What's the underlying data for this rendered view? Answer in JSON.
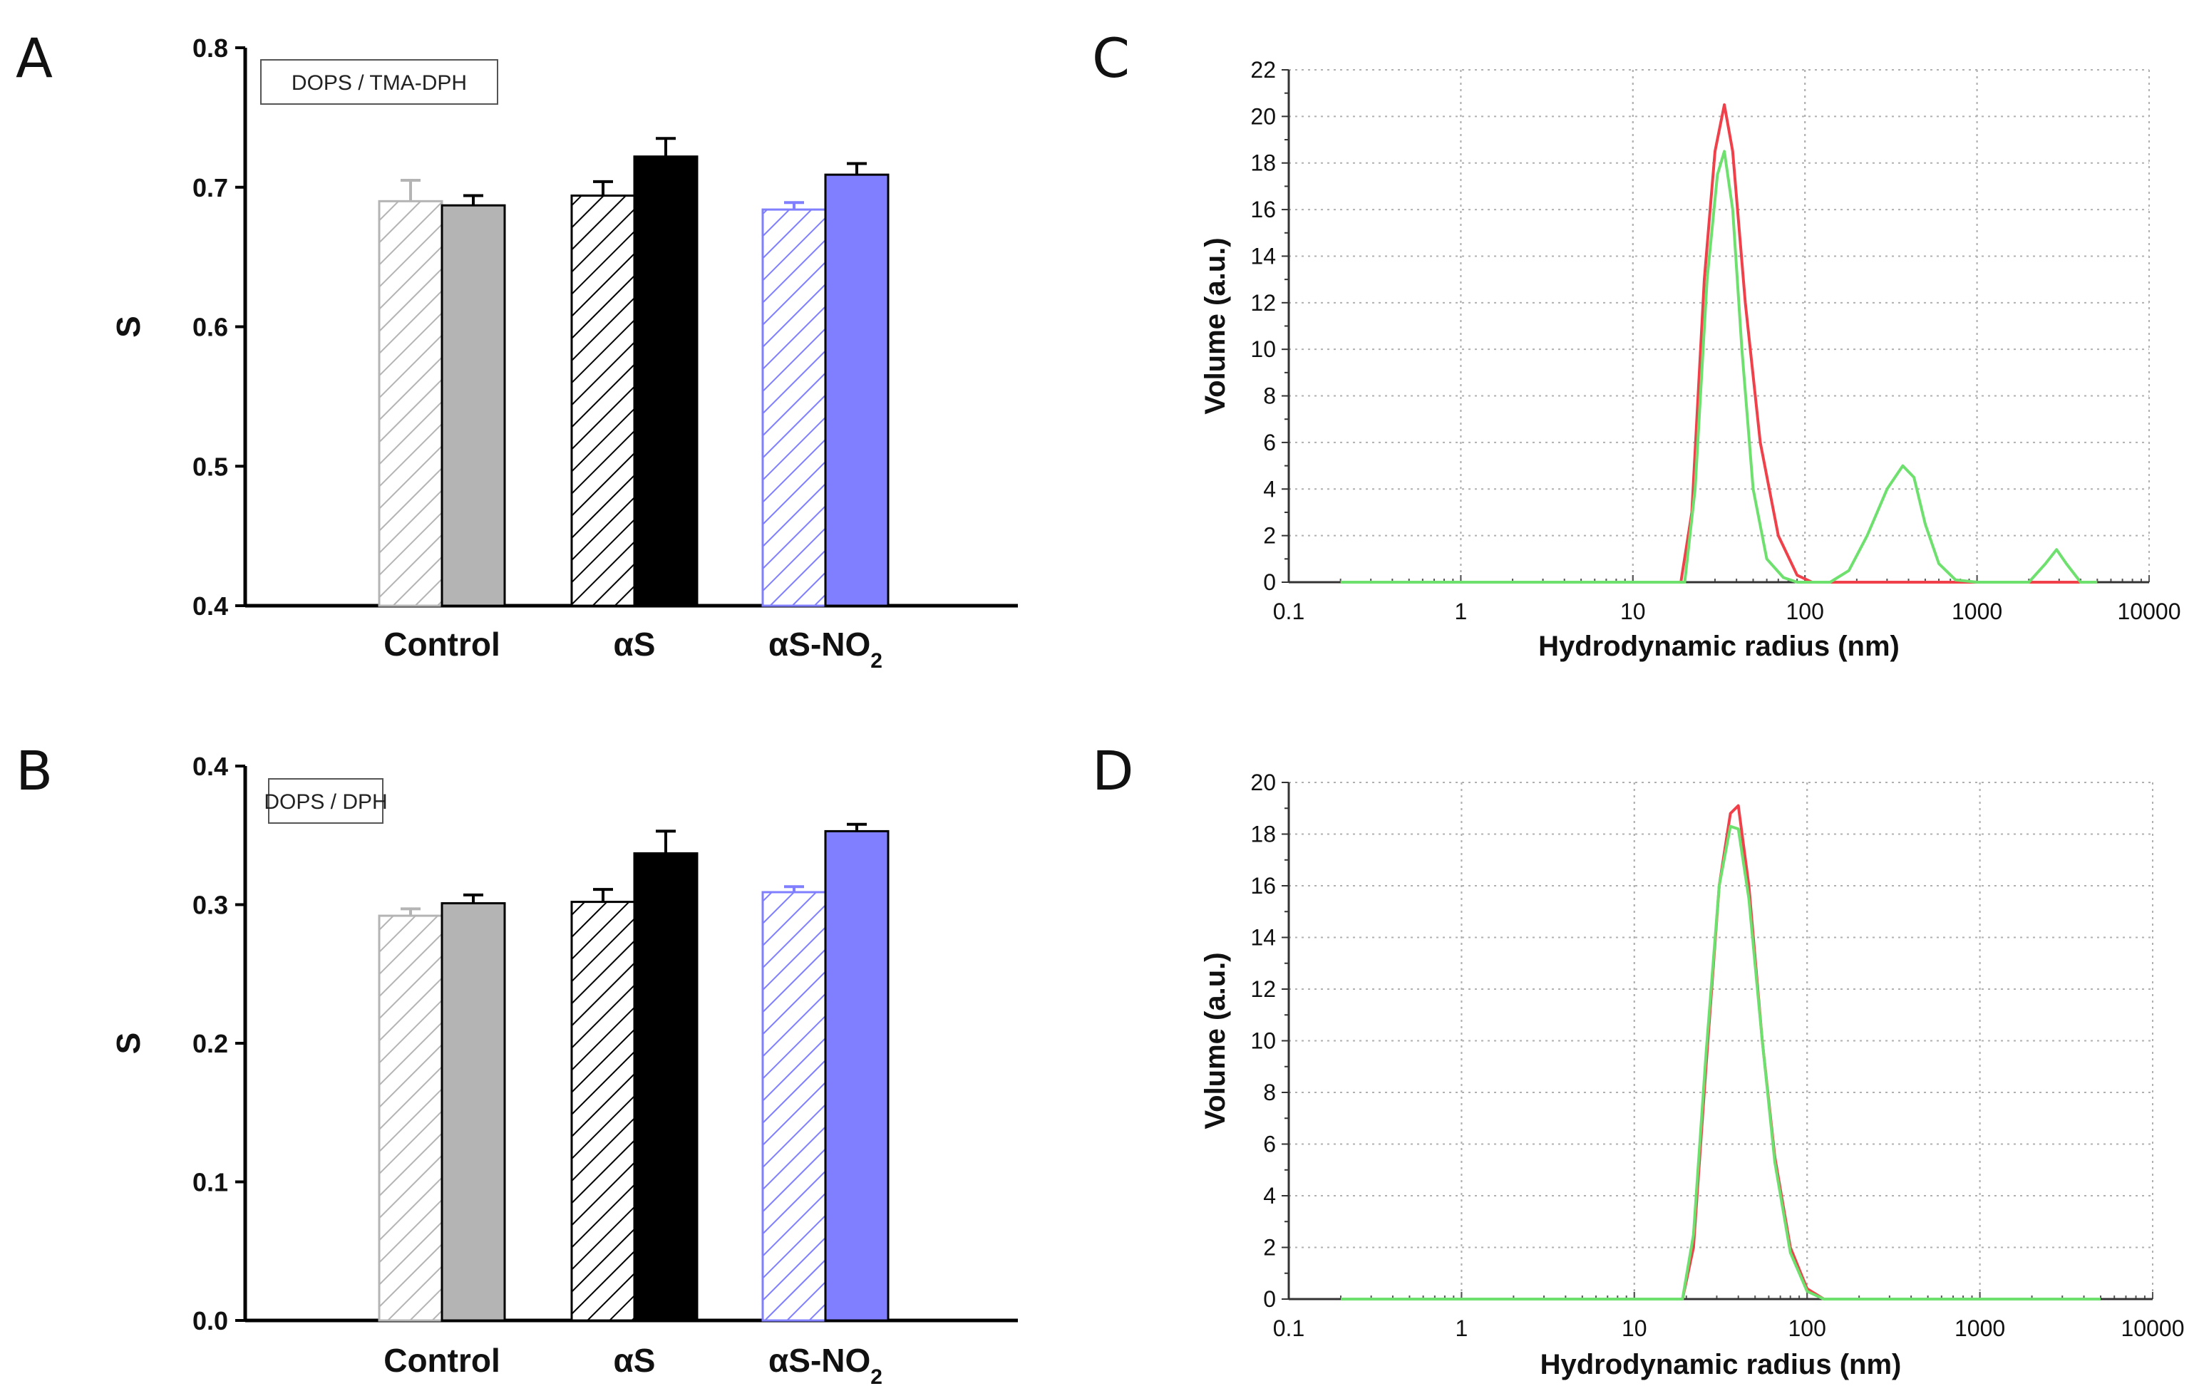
{
  "panel_labels": {
    "A": "A",
    "B": "B",
    "C": "C",
    "D": "D"
  },
  "colors": {
    "control": "#b4b4b4",
    "aS": "#000000",
    "aSNO2": "#7f7fff",
    "red": "#f0404a",
    "green": "#6ee06e",
    "grid": "#b0b0b0"
  },
  "chart_data": [
    {
      "id": "A",
      "type": "bar",
      "legend": "DOPS / TMA-DPH",
      "ylabel": "S",
      "ylim": [
        0.4,
        0.8
      ],
      "yticks": [
        "0.4",
        "0.5",
        "0.6",
        "0.7",
        "0.8"
      ],
      "categories": [
        {
          "name": "Control",
          "sub": ""
        },
        {
          "name": "αS",
          "sub": ""
        },
        {
          "name": "αS-NO",
          "sub": "2"
        }
      ],
      "series": [
        {
          "name": "hatched",
          "values": [
            0.69,
            0.694,
            0.684
          ],
          "errors": [
            0.015,
            0.01,
            0.005
          ]
        },
        {
          "name": "solid",
          "values": [
            0.687,
            0.722,
            0.709
          ],
          "errors": [
            0.007,
            0.013,
            0.008
          ]
        }
      ]
    },
    {
      "id": "B",
      "type": "bar",
      "legend": "DOPS / DPH",
      "ylabel": "S",
      "ylim": [
        0.0,
        0.4
      ],
      "yticks": [
        "0.0",
        "0.1",
        "0.2",
        "0.3",
        "0.4"
      ],
      "categories": [
        {
          "name": "Control",
          "sub": ""
        },
        {
          "name": "αS",
          "sub": ""
        },
        {
          "name": "αS-NO",
          "sub": "2"
        }
      ],
      "series": [
        {
          "name": "hatched",
          "values": [
            0.292,
            0.302,
            0.309
          ],
          "errors": [
            0.005,
            0.009,
            0.004
          ]
        },
        {
          "name": "solid",
          "values": [
            0.301,
            0.337,
            0.353
          ],
          "errors": [
            0.006,
            0.016,
            0.005
          ]
        }
      ]
    },
    {
      "id": "C",
      "type": "line",
      "xscale": "log",
      "xlabel": "Hydrodynamic radius (nm)",
      "ylabel": "Volume (a.u.)",
      "xlim": [
        0.1,
        10000
      ],
      "ylim": [
        0,
        22
      ],
      "xticks": [
        "0.1",
        "1",
        "10",
        "100",
        "1000",
        "10000"
      ],
      "yticks": [
        "0",
        "2",
        "4",
        "6",
        "8",
        "10",
        "12",
        "14",
        "16",
        "18",
        "20",
        "22"
      ],
      "series": [
        {
          "name": "red",
          "x": [
            0.2,
            19,
            22,
            26,
            30,
            34,
            38,
            45,
            55,
            70,
            90,
            110,
            5000
          ],
          "y": [
            0,
            0,
            3,
            13,
            18.5,
            20.5,
            18.5,
            12,
            6,
            2,
            0.3,
            0,
            0
          ]
        },
        {
          "name": "green",
          "x": [
            0.2,
            20,
            23,
            27,
            31,
            34,
            38,
            43,
            50,
            60,
            75,
            90,
            140,
            180,
            230,
            300,
            370,
            430,
            500,
            600,
            750,
            1000,
            2000,
            2500,
            2900,
            3300,
            4000,
            5000
          ],
          "y": [
            0,
            0,
            4,
            13,
            17.5,
            18.5,
            16,
            10,
            4,
            1,
            0.2,
            0,
            0,
            0.5,
            2,
            4,
            5,
            4.5,
            2.5,
            0.8,
            0.1,
            0,
            0,
            0.8,
            1.4,
            0.8,
            0,
            0
          ]
        }
      ]
    },
    {
      "id": "D",
      "type": "line",
      "xscale": "log",
      "xlabel": "Hydrodynamic radius (nm)",
      "ylabel": "Volume (a.u.)",
      "xlim": [
        0.1,
        10000
      ],
      "ylim": [
        0,
        20
      ],
      "xticks": [
        "0.1",
        "1",
        "10",
        "100",
        "1000",
        "10000"
      ],
      "yticks": [
        "0",
        "2",
        "4",
        "6",
        "8",
        "10",
        "12",
        "14",
        "16",
        "18",
        "20"
      ],
      "series": [
        {
          "name": "red",
          "x": [
            0.2,
            19,
            22,
            26,
            31,
            36,
            40,
            46,
            55,
            65,
            80,
            100,
            125,
            5000
          ],
          "y": [
            0,
            0,
            2,
            9,
            16,
            18.8,
            19.1,
            16,
            10,
            5.5,
            2,
            0.4,
            0,
            0
          ]
        },
        {
          "name": "green",
          "x": [
            0.2,
            19,
            22,
            26,
            31,
            36,
            40,
            46,
            55,
            65,
            80,
            100,
            125,
            5000
          ],
          "y": [
            0,
            0,
            2.5,
            9.5,
            16,
            18.3,
            18.2,
            15.5,
            10,
            5.3,
            1.8,
            0.3,
            0,
            0
          ]
        }
      ]
    }
  ]
}
